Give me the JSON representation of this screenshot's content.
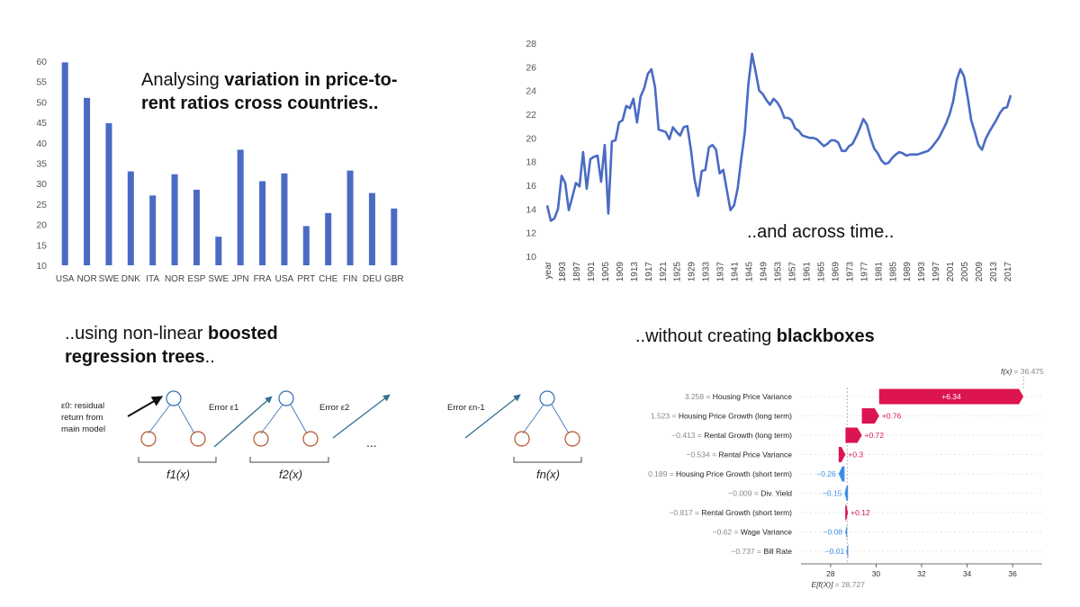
{
  "colors": {
    "bar": "#4a6bc4",
    "line": "#4a6bc4",
    "positive": "#dc1450",
    "negative": "#3b8ee6",
    "axis": "#555555",
    "tree_node_root": "#2f6fb3",
    "tree_node_leaf": "#b4542a",
    "arrow": "#2f6f8f"
  },
  "headings": {
    "top_left_plain": "Analysing ",
    "top_left_bold": "variation in price-to-rent ratios cross countries..",
    "top_right": "..and across time..",
    "bottom_left_plain1": "..using non-linear ",
    "bottom_left_bold": "boosted regression trees",
    "bottom_left_plain2": "..",
    "bottom_right_plain": "..without creating ",
    "bottom_right_bold": "blackboxes"
  },
  "diagram": {
    "residual_label_line1": "ε0: residual",
    "residual_label_line2": "return from",
    "residual_label_line3": "main model",
    "error1": "Error ε1",
    "error2": "Error ε2",
    "errorn": "Error εn-1",
    "ellipsis": "...",
    "f1": "f1(x)",
    "f2": "f2(x)",
    "fn": "fn(x)"
  },
  "chart_data": [
    {
      "type": "bar",
      "categories": [
        "USA",
        "NOR",
        "SWE",
        "DNK",
        "ITA",
        "NOR",
        "ESP",
        "SWE",
        "JPN",
        "FRA",
        "USA",
        "PRT",
        "CHE",
        "FIN",
        "DEU",
        "GBR"
      ],
      "values": [
        59.7,
        51,
        44.8,
        33,
        27.1,
        32.3,
        28.5,
        17,
        38.3,
        30.6,
        32.5,
        19.6,
        22.8,
        33.2,
        27.7,
        23.9
      ],
      "ylim": [
        10,
        60
      ],
      "yticks": [
        "10",
        "15",
        "20",
        "25",
        "30",
        "35",
        "40",
        "45",
        "50",
        "55",
        "60"
      ],
      "grid": false
    },
    {
      "type": "line",
      "x_start": 1889,
      "x_end": 2019,
      "xticks": [
        "year",
        "1893",
        "1897",
        "1901",
        "1905",
        "1909",
        "1913",
        "1917",
        "1921",
        "1925",
        "1929",
        "1933",
        "1937",
        "1941",
        "1945",
        "1949",
        "1953",
        "1957",
        "1961",
        "1965",
        "1969",
        "1973",
        "1977",
        "1981",
        "1985",
        "1989",
        "1993",
        "1997",
        "2001",
        "2005",
        "2009",
        "2013",
        "2017"
      ],
      "ylim": [
        10,
        28
      ],
      "yticks": [
        "10",
        "12",
        "14",
        "16",
        "18",
        "20",
        "22",
        "24",
        "26",
        "28"
      ],
      "points": [
        [
          1889,
          14.3
        ],
        [
          1890,
          13
        ],
        [
          1891,
          13.2
        ],
        [
          1892,
          14
        ],
        [
          1893,
          16.8
        ],
        [
          1894,
          16.2
        ],
        [
          1895,
          13.9
        ],
        [
          1896,
          15
        ],
        [
          1897,
          16.2
        ],
        [
          1898,
          15.9
        ],
        [
          1899,
          18.8
        ],
        [
          1900,
          15.7
        ],
        [
          1901,
          18.2
        ],
        [
          1902,
          18.4
        ],
        [
          1903,
          18.5
        ],
        [
          1904,
          16.3
        ],
        [
          1905,
          19.4
        ],
        [
          1906,
          13.6
        ],
        [
          1907,
          19.7
        ],
        [
          1908,
          19.8
        ],
        [
          1909,
          21.3
        ],
        [
          1910,
          21.5
        ],
        [
          1911,
          22.7
        ],
        [
          1912,
          22.5
        ],
        [
          1913,
          23.3
        ],
        [
          1914,
          21.3
        ],
        [
          1915,
          23.5
        ],
        [
          1916,
          24.2
        ],
        [
          1917,
          25.4
        ],
        [
          1918,
          25.8
        ],
        [
          1919,
          24.3
        ],
        [
          1920,
          20.7
        ],
        [
          1921,
          20.6
        ],
        [
          1922,
          20.5
        ],
        [
          1923,
          19.9
        ],
        [
          1924,
          20.9
        ],
        [
          1925,
          20.5
        ],
        [
          1926,
          20.2
        ],
        [
          1927,
          20.9
        ],
        [
          1928,
          21
        ],
        [
          1929,
          19
        ],
        [
          1930,
          16.5
        ],
        [
          1931,
          15.1
        ],
        [
          1932,
          17.2
        ],
        [
          1933,
          17.3
        ],
        [
          1934,
          19.2
        ],
        [
          1935,
          19.4
        ],
        [
          1936,
          19
        ],
        [
          1937,
          17
        ],
        [
          1938,
          17.3
        ],
        [
          1939,
          15.6
        ],
        [
          1940,
          13.9
        ],
        [
          1941,
          14.3
        ],
        [
          1942,
          15.7
        ],
        [
          1943,
          18.2
        ],
        [
          1944,
          20.5
        ],
        [
          1945,
          24.6
        ],
        [
          1946,
          27.1
        ],
        [
          1947,
          25.6
        ],
        [
          1948,
          24
        ],
        [
          1949,
          23.7
        ],
        [
          1950,
          23.2
        ],
        [
          1951,
          22.8
        ],
        [
          1952,
          23.3
        ],
        [
          1953,
          23
        ],
        [
          1954,
          22.5
        ],
        [
          1955,
          21.7
        ],
        [
          1956,
          21.7
        ],
        [
          1957,
          21.5
        ],
        [
          1958,
          20.8
        ],
        [
          1959,
          20.6
        ],
        [
          1960,
          20.2
        ],
        [
          1961,
          20.1
        ],
        [
          1962,
          20
        ],
        [
          1963,
          20
        ],
        [
          1964,
          19.9
        ],
        [
          1965,
          19.6
        ],
        [
          1966,
          19.3
        ],
        [
          1967,
          19.5
        ],
        [
          1968,
          19.8
        ],
        [
          1969,
          19.8
        ],
        [
          1970,
          19.6
        ],
        [
          1971,
          18.9
        ],
        [
          1972,
          18.9
        ],
        [
          1973,
          19.3
        ],
        [
          1974,
          19.5
        ],
        [
          1975,
          20.1
        ],
        [
          1976,
          20.8
        ],
        [
          1977,
          21.6
        ],
        [
          1978,
          21.1
        ],
        [
          1979,
          20
        ],
        [
          1980,
          19.1
        ],
        [
          1981,
          18.7
        ],
        [
          1982,
          18.1
        ],
        [
          1983,
          17.8
        ],
        [
          1984,
          17.9
        ],
        [
          1985,
          18.3
        ],
        [
          1986,
          18.6
        ],
        [
          1987,
          18.8
        ],
        [
          1988,
          18.7
        ],
        [
          1989,
          18.5
        ],
        [
          1990,
          18.6
        ],
        [
          1991,
          18.6
        ],
        [
          1992,
          18.6
        ],
        [
          1993,
          18.7
        ],
        [
          1994,
          18.8
        ],
        [
          1995,
          18.9
        ],
        [
          1996,
          19.2
        ],
        [
          1997,
          19.6
        ],
        [
          1998,
          20
        ],
        [
          1999,
          20.6
        ],
        [
          2000,
          21.2
        ],
        [
          2001,
          22
        ],
        [
          2002,
          23.1
        ],
        [
          2003,
          24.9
        ],
        [
          2004,
          25.8
        ],
        [
          2005,
          25.2
        ],
        [
          2006,
          23.5
        ],
        [
          2007,
          21.5
        ],
        [
          2008,
          20.5
        ],
        [
          2009,
          19.4
        ],
        [
          2010,
          19
        ],
        [
          2011,
          19.9
        ],
        [
          2012,
          20.5
        ],
        [
          2013,
          21
        ],
        [
          2014,
          21.5
        ],
        [
          2015,
          22.1
        ],
        [
          2016,
          22.5
        ],
        [
          2017,
          22.6
        ],
        [
          2018,
          23.6
        ]
      ]
    },
    {
      "type": "waterfall",
      "fx_label": "f(x)",
      "fx_value": "= 36.475",
      "base_label": "E[f(X)]",
      "base_value": "= 28.727",
      "base": 28.727,
      "final": 36.475,
      "xlim": [
        26.7,
        37.3
      ],
      "xticks": [
        28,
        30,
        32,
        34,
        36
      ],
      "features": [
        {
          "value": "3.258",
          "name": "Housing Price Variance",
          "shap": 6.34,
          "label": "+6.34"
        },
        {
          "value": "1.523",
          "name": "Housing Price Growth (long term)",
          "shap": 0.76,
          "label": "+0.76"
        },
        {
          "value": "−0.413",
          "name": "Rental Growth (long term)",
          "shap": 0.72,
          "label": "+0.72"
        },
        {
          "value": "−0.534",
          "name": "Rental Price Variance",
          "shap": 0.3,
          "label": "+0.3"
        },
        {
          "value": "0.189",
          "name": "Housing Price Growth (short term)",
          "shap": -0.26,
          "label": "−0.26"
        },
        {
          "value": "−0.009",
          "name": "Div. Yield",
          "shap": -0.15,
          "label": "−0.15"
        },
        {
          "value": "−0.817",
          "name": "Rental Growth (short term)",
          "shap": 0.12,
          "label": "+0.12"
        },
        {
          "value": "−0.62",
          "name": "Wage Variance",
          "shap": -0.08,
          "label": "−0.08"
        },
        {
          "value": "−0.737",
          "name": "Bill Rate",
          "shap": -0.01,
          "label": "−0.01"
        }
      ]
    }
  ]
}
